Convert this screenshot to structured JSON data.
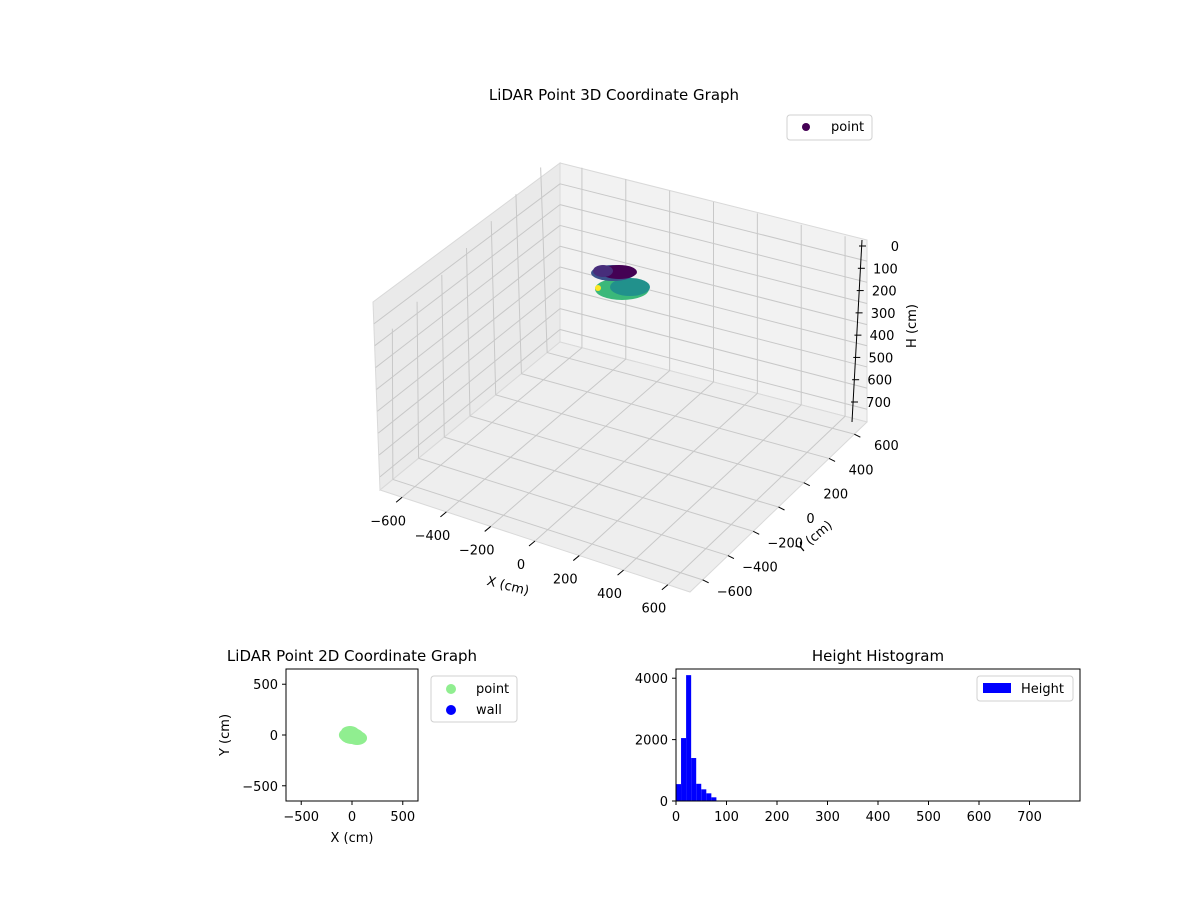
{
  "colors": {
    "point_top": "#440154",
    "point_mid": "#21918c",
    "point_low": "#3bb87a",
    "point_yellow": "#fde725",
    "pts2d_point": "#90ee90",
    "pts2d_wall": "#0000ff",
    "hist": "#0000ff",
    "pane": "#f2f2f2",
    "grid": "#c8c8c8"
  },
  "chart_data": [
    {
      "type": "scatter3d",
      "title": "LiDAR Point 3D Coordinate Graph",
      "xlabel": "X (cm)",
      "ylabel": "Y (cm)",
      "zlabel": "H (cm)",
      "xlim": [
        -700,
        700
      ],
      "ylim": [
        -700,
        700
      ],
      "zlim": [
        800,
        0
      ],
      "xticks": [
        "−600",
        "−400",
        "−200",
        "0",
        "200",
        "400",
        "600"
      ],
      "yticks": [
        "−600",
        "−400",
        "−200",
        "0",
        "200",
        "400",
        "600"
      ],
      "zticks": [
        "0",
        "100",
        "200",
        "300",
        "400",
        "500",
        "600",
        "700"
      ],
      "legend": [
        "point"
      ],
      "cluster": {
        "x_range": [
          -100,
          100
        ],
        "y_range": [
          -100,
          100
        ],
        "h_range": [
          0,
          80
        ]
      }
    },
    {
      "type": "scatter",
      "title": "LiDAR Point 2D Coordinate Graph",
      "xlabel": "X (cm)",
      "ylabel": "Y (cm)",
      "xlim": [
        -650,
        650
      ],
      "ylim": [
        -650,
        650
      ],
      "xticks": [
        "−500",
        "0",
        "500"
      ],
      "yticks": [
        "−500",
        "0",
        "500"
      ],
      "legend": [
        "point",
        "wall"
      ],
      "series": [
        {
          "name": "point",
          "x_range": [
            -120,
            120
          ],
          "y_range": [
            -110,
            90
          ]
        },
        {
          "name": "wall",
          "points": []
        }
      ]
    },
    {
      "type": "bar",
      "title": "Height Histogram",
      "legend": [
        "Height"
      ],
      "xlim": [
        0,
        800
      ],
      "ylim": [
        0,
        4300
      ],
      "xticks": [
        "0",
        "100",
        "200",
        "300",
        "400",
        "500",
        "600",
        "700"
      ],
      "yticks": [
        "0",
        "2000",
        "4000"
      ],
      "bin_width": 10,
      "bins": [
        {
          "x0": 0,
          "value": 550
        },
        {
          "x0": 10,
          "value": 2050
        },
        {
          "x0": 20,
          "value": 4100
        },
        {
          "x0": 30,
          "value": 1400
        },
        {
          "x0": 40,
          "value": 560
        },
        {
          "x0": 50,
          "value": 380
        },
        {
          "x0": 60,
          "value": 250
        },
        {
          "x0": 70,
          "value": 120
        }
      ]
    }
  ]
}
